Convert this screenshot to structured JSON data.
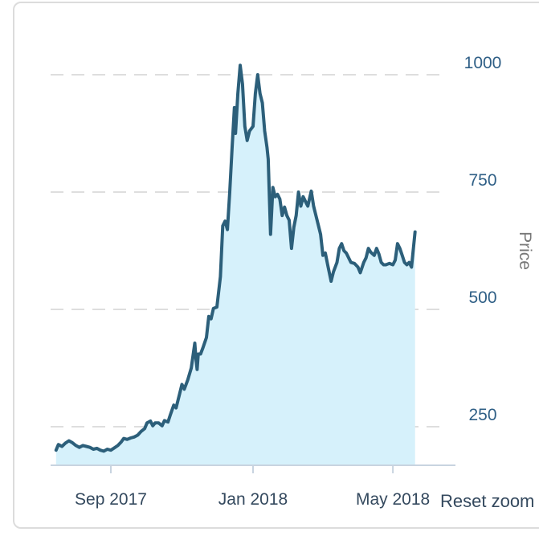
{
  "chart_data": {
    "type": "area",
    "ylabel": "Price",
    "ylim": [
      170,
      1050
    ],
    "yticks": [
      250,
      500,
      750,
      1000
    ],
    "xticks": [
      {
        "label": "Sep 2017",
        "date": "2017-09-01"
      },
      {
        "label": "Jan 2018",
        "date": "2018-01-01"
      },
      {
        "label": "May 2018",
        "date": "2018-05-01"
      }
    ],
    "grid": "horizontal-dashed",
    "line_color": "#2c5f7a",
    "fill_color": "#d6f1fb",
    "points": [
      [
        "2017-07-16",
        200
      ],
      [
        "2017-07-18",
        212
      ],
      [
        "2017-07-21",
        208
      ],
      [
        "2017-07-24",
        215
      ],
      [
        "2017-07-27",
        220
      ],
      [
        "2017-07-30",
        216
      ],
      [
        "2017-08-02",
        210
      ],
      [
        "2017-08-05",
        206
      ],
      [
        "2017-08-08",
        210
      ],
      [
        "2017-08-11",
        208
      ],
      [
        "2017-08-14",
        206
      ],
      [
        "2017-08-17",
        202
      ],
      [
        "2017-08-20",
        204
      ],
      [
        "2017-08-23",
        200
      ],
      [
        "2017-08-26",
        198
      ],
      [
        "2017-08-29",
        202
      ],
      [
        "2017-09-01",
        200
      ],
      [
        "2017-09-04",
        205
      ],
      [
        "2017-09-07",
        210
      ],
      [
        "2017-09-10",
        218
      ],
      [
        "2017-09-12",
        225
      ],
      [
        "2017-09-15",
        223
      ],
      [
        "2017-09-18",
        226
      ],
      [
        "2017-09-21",
        228
      ],
      [
        "2017-09-24",
        232
      ],
      [
        "2017-09-27",
        240
      ],
      [
        "2017-09-30",
        246
      ],
      [
        "2017-10-02",
        258
      ],
      [
        "2017-10-05",
        262
      ],
      [
        "2017-10-07",
        252
      ],
      [
        "2017-10-09",
        258
      ],
      [
        "2017-10-12",
        258
      ],
      [
        "2017-10-15",
        252
      ],
      [
        "2017-10-17",
        263
      ],
      [
        "2017-10-20",
        260
      ],
      [
        "2017-10-22",
        275
      ],
      [
        "2017-10-25",
        296
      ],
      [
        "2017-10-27",
        290
      ],
      [
        "2017-10-30",
        320
      ],
      [
        "2017-11-01",
        340
      ],
      [
        "2017-11-03",
        330
      ],
      [
        "2017-11-06",
        350
      ],
      [
        "2017-11-09",
        375
      ],
      [
        "2017-11-12",
        428
      ],
      [
        "2017-11-13",
        395
      ],
      [
        "2017-11-14",
        372
      ],
      [
        "2017-11-15",
        405
      ],
      [
        "2017-11-17",
        405
      ],
      [
        "2017-11-19",
        418
      ],
      [
        "2017-11-22",
        440
      ],
      [
        "2017-11-24",
        485
      ],
      [
        "2017-11-26",
        480
      ],
      [
        "2017-11-28",
        502
      ],
      [
        "2017-12-01",
        505
      ],
      [
        "2017-12-04",
        570
      ],
      [
        "2017-12-06",
        678
      ],
      [
        "2017-12-08",
        688
      ],
      [
        "2017-12-10",
        670
      ],
      [
        "2017-12-12",
        750
      ],
      [
        "2017-12-14",
        843
      ],
      [
        "2017-12-16",
        930
      ],
      [
        "2017-12-17",
        875
      ],
      [
        "2017-12-19",
        960
      ],
      [
        "2017-12-21",
        1020
      ],
      [
        "2017-12-23",
        980
      ],
      [
        "2017-12-25",
        890
      ],
      [
        "2017-12-27",
        860
      ],
      [
        "2017-12-29",
        880
      ],
      [
        "2018-01-01",
        890
      ],
      [
        "2018-01-03",
        960
      ],
      [
        "2018-01-05",
        1000
      ],
      [
        "2018-01-07",
        960
      ],
      [
        "2018-01-09",
        940
      ],
      [
        "2018-01-11",
        880
      ],
      [
        "2018-01-13",
        845
      ],
      [
        "2018-01-14",
        820
      ],
      [
        "2018-01-16",
        660
      ],
      [
        "2018-01-18",
        760
      ],
      [
        "2018-01-20",
        740
      ],
      [
        "2018-01-22",
        745
      ],
      [
        "2018-01-24",
        735
      ],
      [
        "2018-01-26",
        700
      ],
      [
        "2018-01-28",
        718
      ],
      [
        "2018-01-30",
        700
      ],
      [
        "2018-02-01",
        690
      ],
      [
        "2018-02-03",
        630
      ],
      [
        "2018-02-05",
        675
      ],
      [
        "2018-02-07",
        700
      ],
      [
        "2018-02-09",
        750
      ],
      [
        "2018-02-11",
        720
      ],
      [
        "2018-02-13",
        740
      ],
      [
        "2018-02-15",
        730
      ],
      [
        "2018-02-17",
        720
      ],
      [
        "2018-02-20",
        752
      ],
      [
        "2018-02-22",
        720
      ],
      [
        "2018-02-24",
        700
      ],
      [
        "2018-02-26",
        680
      ],
      [
        "2018-02-28",
        660
      ],
      [
        "2018-03-02",
        615
      ],
      [
        "2018-03-04",
        620
      ],
      [
        "2018-03-06",
        595
      ],
      [
        "2018-03-09",
        560
      ],
      [
        "2018-03-11",
        580
      ],
      [
        "2018-03-14",
        600
      ],
      [
        "2018-03-16",
        630
      ],
      [
        "2018-03-18",
        640
      ],
      [
        "2018-03-20",
        625
      ],
      [
        "2018-03-22",
        620
      ],
      [
        "2018-03-24",
        610
      ],
      [
        "2018-03-26",
        600
      ],
      [
        "2018-03-29",
        598
      ],
      [
        "2018-04-01",
        590
      ],
      [
        "2018-04-03",
        578
      ],
      [
        "2018-04-06",
        600
      ],
      [
        "2018-04-08",
        610
      ],
      [
        "2018-04-10",
        630
      ],
      [
        "2018-04-12",
        622
      ],
      [
        "2018-04-15",
        615
      ],
      [
        "2018-04-17",
        630
      ],
      [
        "2018-04-19",
        618
      ],
      [
        "2018-04-21",
        600
      ],
      [
        "2018-04-23",
        595
      ],
      [
        "2018-04-25",
        595
      ],
      [
        "2018-04-28",
        598
      ],
      [
        "2018-05-01",
        595
      ],
      [
        "2018-05-03",
        605
      ],
      [
        "2018-05-05",
        640
      ],
      [
        "2018-05-07",
        630
      ],
      [
        "2018-05-09",
        615
      ],
      [
        "2018-05-11",
        600
      ],
      [
        "2018-05-13",
        595
      ],
      [
        "2018-05-15",
        600
      ],
      [
        "2018-05-17",
        590
      ],
      [
        "2018-05-20",
        665
      ]
    ]
  },
  "reset_zoom_label": "Reset zoom"
}
